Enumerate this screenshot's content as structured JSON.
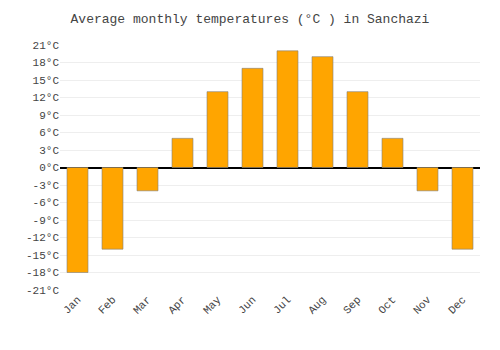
{
  "chart_data": {
    "type": "bar",
    "title": "Average monthly temperatures (°C ) in Sanchazi",
    "categories": [
      "Jan",
      "Feb",
      "Mar",
      "Apr",
      "May",
      "Jun",
      "Jul",
      "Aug",
      "Sep",
      "Oct",
      "Nov",
      "Dec"
    ],
    "values": [
      -18,
      -14,
      -4,
      5,
      13,
      17,
      20,
      19,
      13,
      5,
      -4,
      -14
    ],
    "color": "#FFA500",
    "ylim": [
      -21,
      21
    ],
    "yticks": [
      {
        "value": -21,
        "label": "-21°C"
      },
      {
        "value": -18,
        "label": "-18°C"
      },
      {
        "value": -15,
        "label": "-15°C"
      },
      {
        "value": -12,
        "label": "-12°C"
      },
      {
        "value": -9,
        "label": "-9°C"
      },
      {
        "value": -6,
        "label": "-6°C"
      },
      {
        "value": -3,
        "label": "-3°C"
      },
      {
        "value": 0,
        "label": "0°C"
      },
      {
        "value": 3,
        "label": "3°C"
      },
      {
        "value": 6,
        "label": "6°C"
      },
      {
        "value": 9,
        "label": "9°C"
      },
      {
        "value": 12,
        "label": "12°C"
      },
      {
        "value": 15,
        "label": "15°C"
      },
      {
        "value": 18,
        "label": "18°C"
      },
      {
        "value": 21,
        "label": "21°C"
      }
    ],
    "grid": true
  }
}
